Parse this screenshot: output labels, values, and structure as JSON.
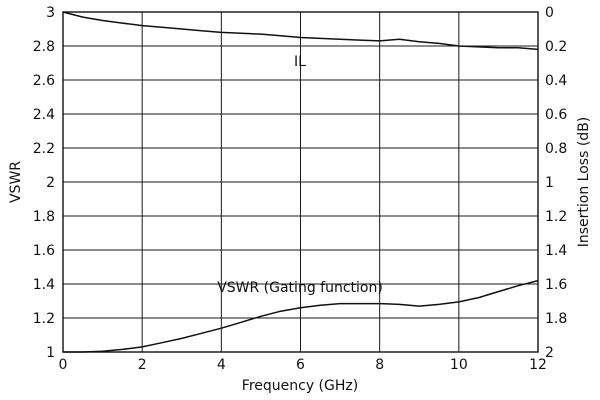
{
  "chart_data": {
    "type": "line",
    "title": "",
    "xlabel": "Frequency (GHz)",
    "ylabel_left": "VSWR",
    "ylabel_right": "Insertion Loss (dB)",
    "xlim": [
      0,
      12
    ],
    "ylim_left": [
      1,
      3
    ],
    "ylim_right": [
      2,
      0
    ],
    "x_ticks": [
      "0",
      "2",
      "4",
      "6",
      "8",
      "10",
      "12"
    ],
    "y_left_ticks": [
      "1",
      "1.2",
      "1.4",
      "1.6",
      "1.8",
      "2",
      "2.2",
      "2.4",
      "2.6",
      "2.8",
      "3"
    ],
    "y_right_ticks": [
      "0",
      "0.2",
      "0.4",
      "0.6",
      "0.8",
      "1",
      "1.2",
      "1.4",
      "1.6",
      "1.8",
      "2"
    ],
    "grid": true,
    "series": [
      {
        "name": "VSWR (Gating function)",
        "axis": "left",
        "x": [
          0,
          0.5,
          1,
          1.5,
          2,
          2.5,
          3,
          3.5,
          4,
          4.5,
          5,
          5.5,
          6,
          6.5,
          7,
          7.5,
          8,
          8.5,
          9,
          9.5,
          10,
          10.5,
          11,
          11.5,
          12
        ],
        "y": [
          1.0,
          1.0,
          1.005,
          1.015,
          1.03,
          1.055,
          1.08,
          1.11,
          1.14,
          1.175,
          1.21,
          1.24,
          1.26,
          1.275,
          1.285,
          1.285,
          1.285,
          1.28,
          1.27,
          1.28,
          1.295,
          1.32,
          1.355,
          1.39,
          1.42
        ]
      },
      {
        "name": "IL",
        "axis": "right",
        "x": [
          0,
          0.5,
          1,
          1.5,
          2,
          2.5,
          3,
          3.5,
          4,
          4.5,
          5,
          5.5,
          6,
          6.5,
          7,
          7.5,
          8,
          8.5,
          9,
          9.5,
          10,
          10.5,
          11,
          11.5,
          12
        ],
        "y": [
          0.0,
          0.03,
          0.05,
          0.065,
          0.08,
          0.09,
          0.1,
          0.11,
          0.12,
          0.125,
          0.13,
          0.14,
          0.15,
          0.155,
          0.16,
          0.165,
          0.17,
          0.16,
          0.175,
          0.185,
          0.2,
          0.205,
          0.21,
          0.21,
          0.22
        ]
      }
    ],
    "annotations": [
      "IL",
      "VSWR (Gating function)"
    ]
  }
}
